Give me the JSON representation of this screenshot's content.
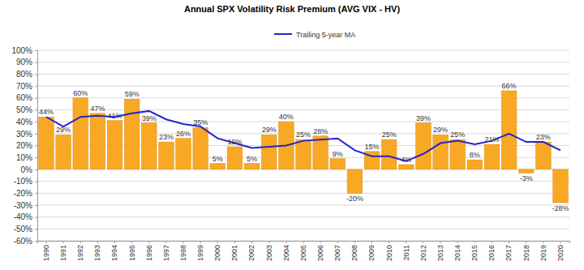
{
  "chart_data": {
    "type": "bar",
    "title": "Annual SPX Volatility Risk Premium (AVG VIX - HV)",
    "categories": [
      "1990",
      "1991",
      "1992",
      "1993",
      "1994",
      "1995",
      "1996",
      "1997",
      "1998",
      "1999",
      "2000",
      "2001",
      "2002",
      "2003",
      "2004",
      "2005",
      "2006",
      "2007",
      "2008",
      "2009",
      "2010",
      "2011",
      "2012",
      "2013",
      "2014",
      "2015",
      "2016",
      "2017",
      "2018",
      "2019",
      "2020"
    ],
    "series": [
      {
        "type": "bar",
        "color": "#f9a825",
        "values": [
          44,
          29,
          60,
          47,
          41,
          59,
          39,
          23,
          26,
          35,
          5,
          19,
          5,
          29,
          40,
          25,
          28,
          9,
          -20,
          15,
          25,
          4,
          39,
          29,
          25,
          8,
          21,
          66,
          -3,
          23,
          -28
        ],
        "value_labels": [
          "44%",
          "29%",
          "60%",
          "47%",
          "41%",
          "59%",
          "39%",
          "23%",
          "26%",
          "35%",
          "5%",
          "19%",
          "5%",
          "29%",
          "40%",
          "25%",
          "28%",
          "9%",
          "-20%",
          "15%",
          "25%",
          "4%",
          "39%",
          "29%",
          "25%",
          "8%",
          "21%",
          "66%",
          "-3%",
          "23%",
          "-28%"
        ]
      },
      {
        "name": "Trailing 5-year MA",
        "type": "line",
        "color": "#2525c8",
        "values": [
          44,
          36,
          44,
          45,
          44,
          47,
          49,
          42,
          38,
          36,
          26,
          22,
          18,
          19,
          20,
          24,
          25,
          26,
          16,
          11,
          11,
          7,
          13,
          22,
          24,
          21,
          24,
          30,
          23,
          23,
          16
        ]
      }
    ],
    "ylim": [
      -60,
      100
    ],
    "yticks": [
      {
        "value": -60,
        "label": "-60%"
      },
      {
        "value": -50,
        "label": "-50%"
      },
      {
        "value": -40,
        "label": "-40%"
      },
      {
        "value": -30,
        "label": "-30%"
      },
      {
        "value": -20,
        "label": "-20%"
      },
      {
        "value": -10,
        "label": "-10%"
      },
      {
        "value": 0,
        "label": "0%"
      },
      {
        "value": 10,
        "label": "10%"
      },
      {
        "value": 20,
        "label": "20%"
      },
      {
        "value": 30,
        "label": "30%"
      },
      {
        "value": 40,
        "label": "40%"
      },
      {
        "value": 50,
        "label": "50%"
      },
      {
        "value": 60,
        "label": "60%"
      },
      {
        "value": 70,
        "label": "70%"
      },
      {
        "value": 80,
        "label": "80%"
      },
      {
        "value": 90,
        "label": "90%"
      },
      {
        "value": 100,
        "label": "100%"
      }
    ],
    "grid": true,
    "legend": "top",
    "data_labels": true
  }
}
